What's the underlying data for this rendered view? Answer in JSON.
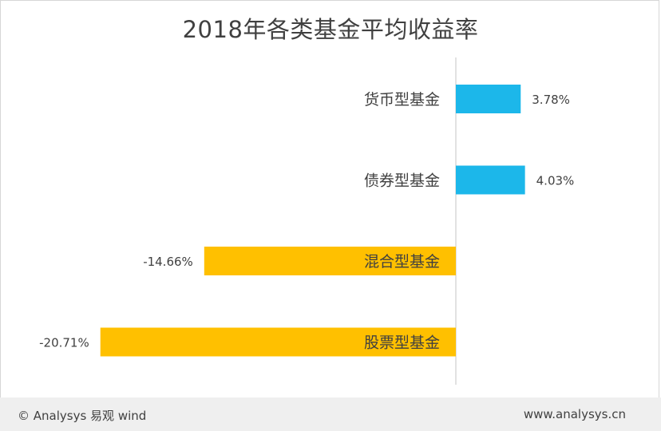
{
  "chart_data": {
    "type": "bar",
    "orientation": "horizontal",
    "title": "2018年各类基金平均收益率",
    "categories": [
      "货币型基金",
      "债券型基金",
      "混合型基金",
      "股票型基金"
    ],
    "values": [
      3.78,
      4.03,
      -14.66,
      -20.71
    ],
    "value_labels": [
      "3.78%",
      "4.03%",
      "-14.66%",
      "-20.71%"
    ],
    "colors": {
      "positive": "#1CB7EA",
      "negative": "#FFC000"
    },
    "grid": false,
    "legend": "none"
  },
  "footer": {
    "source": "© Analysys 易观 wind",
    "site": "www.analysys.cn"
  }
}
